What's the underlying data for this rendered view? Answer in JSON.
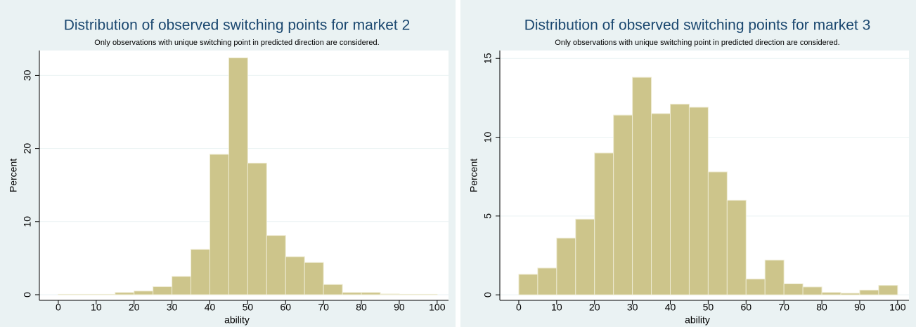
{
  "chart_data": [
    {
      "type": "histogram",
      "title": "Distribution of observed switching points for market 2",
      "subtitle": "Only observations with unique switching point in predicted direction are considered.",
      "x_label": "ability",
      "y_label": "Percent",
      "color": "#cdc58b",
      "bins": [
        0,
        5,
        10,
        15,
        20,
        25,
        30,
        35,
        40,
        45,
        50,
        55,
        60,
        65,
        70,
        75,
        80,
        85,
        90,
        95,
        100
      ],
      "values": [
        0.05,
        0.05,
        0.05,
        0.3,
        0.5,
        1.1,
        2.5,
        6.2,
        19.2,
        32.4,
        18.0,
        8.1,
        5.2,
        4.4,
        1.4,
        0.3,
        0.3,
        0.1,
        0.05,
        0.05
      ],
      "xlim": [
        -5,
        103
      ],
      "ylim": [
        -0.77,
        33.4
      ],
      "xticks": [
        0,
        10,
        20,
        30,
        40,
        50,
        60,
        70,
        80,
        90,
        100
      ],
      "yticks": [
        0,
        10,
        20,
        30
      ],
      "grid": true
    },
    {
      "type": "histogram",
      "title": "Distribution of observed switching points for market 3",
      "subtitle": "Only observations with unique switching point in predicted direction are considered.",
      "x_label": "ability",
      "y_label": "Percent",
      "color": "#cdc58b",
      "bins": [
        0,
        5,
        10,
        15,
        20,
        25,
        30,
        35,
        40,
        45,
        50,
        55,
        60,
        65,
        70,
        75,
        80,
        85,
        90,
        95,
        100
      ],
      "values": [
        1.3,
        1.7,
        3.6,
        4.8,
        9.0,
        11.4,
        13.8,
        11.5,
        12.1,
        11.9,
        7.8,
        6.0,
        1.0,
        2.2,
        0.7,
        0.5,
        0.15,
        0.1,
        0.3,
        0.6
      ],
      "xlim": [
        -5,
        103
      ],
      "ylim": [
        -0.35,
        15.5
      ],
      "xticks": [
        0,
        10,
        20,
        30,
        40,
        50,
        60,
        70,
        80,
        90,
        100
      ],
      "yticks": [
        0,
        5,
        10,
        15
      ],
      "grid": true
    }
  ]
}
